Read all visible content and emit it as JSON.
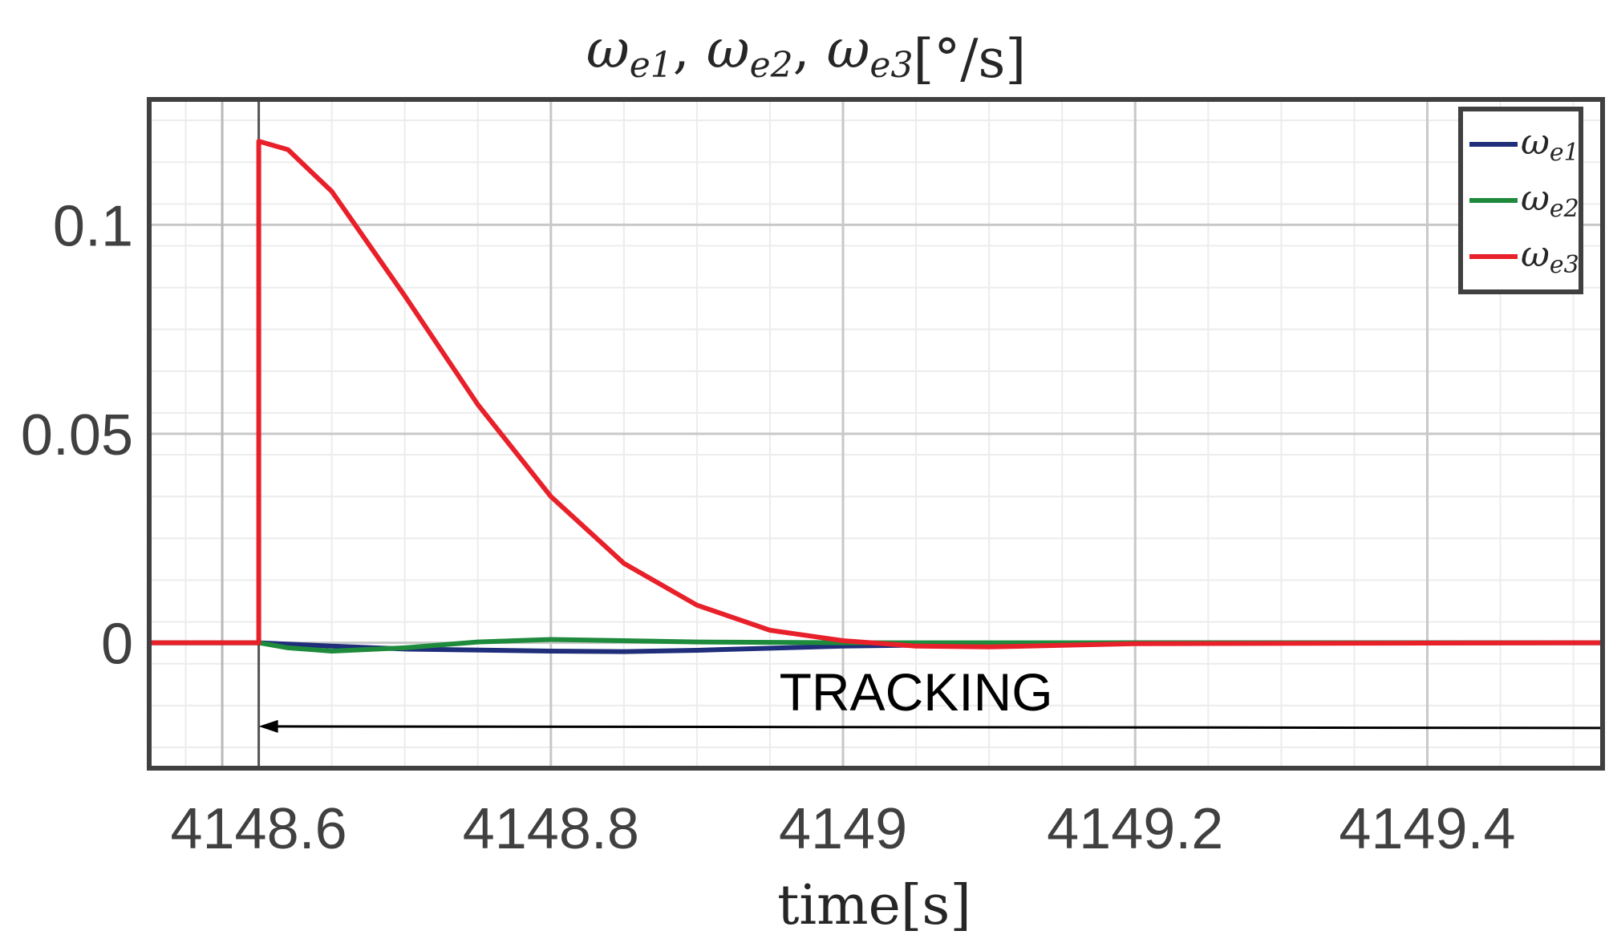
{
  "chart_data": {
    "type": "line",
    "title": {
      "parts": [
        {
          "symbol": "ω",
          "sub": "e1",
          "sep": ", "
        },
        {
          "symbol": "ω",
          "sub": "e2",
          "sep": ", "
        },
        {
          "symbol": "ω",
          "sub": "e3",
          "sep": ""
        }
      ],
      "unit": "[°/s]"
    },
    "xlabel_main": "time",
    "xlabel_unit": "[s]",
    "ylabel": "",
    "xlim": [
      4148.525,
      4149.52
    ],
    "ylim": [
      -0.03,
      0.13
    ],
    "x_ticks": [
      4148.6,
      4148.8,
      4149,
      4149.2,
      4149.4
    ],
    "x_tick_labels": [
      "4148.6",
      "4148.8",
      "4149",
      "4149.2",
      "4149.4"
    ],
    "y_ticks": [
      0,
      0.05,
      0.1
    ],
    "y_tick_labels": [
      "0",
      "0.05",
      "0.1"
    ],
    "grid": true,
    "minor_grid": true,
    "legend_position": "top-right",
    "legend": [
      {
        "symbol": "ω",
        "sub": "e1",
        "color": "#1f2d7a"
      },
      {
        "symbol": "ω",
        "sub": "e2",
        "color": "#1e8a3c"
      },
      {
        "symbol": "ω",
        "sub": "e3",
        "color": "#e8202a"
      }
    ],
    "vertical_lines": [
      4148.575,
      4148.6
    ],
    "series": [
      {
        "name": "ωe1",
        "color": "#1f2d7a",
        "x": [
          4148.525,
          4148.6,
          4148.6,
          4148.65,
          4148.7,
          4148.8,
          4148.85,
          4148.9,
          4149.0,
          4149.1,
          4149.2,
          4149.52
        ],
        "y": [
          0,
          0,
          0,
          -0.0008,
          -0.0015,
          -0.002,
          -0.0021,
          -0.0018,
          -0.0008,
          -0.0003,
          0,
          0
        ]
      },
      {
        "name": "ωe2",
        "color": "#1e8a3c",
        "x": [
          4148.525,
          4148.6,
          4148.6,
          4148.62,
          4148.65,
          4148.7,
          4148.75,
          4148.8,
          4148.85,
          4148.9,
          4149.0,
          4149.1,
          4149.52
        ],
        "y": [
          0,
          0,
          0,
          -0.0012,
          -0.002,
          -0.0012,
          0.0002,
          0.0008,
          0.0005,
          0.0002,
          0,
          0,
          0
        ]
      },
      {
        "name": "ωe3",
        "color": "#e8202a",
        "x": [
          4148.525,
          4148.6,
          4148.6,
          4148.62,
          4148.65,
          4148.7,
          4148.75,
          4148.8,
          4148.85,
          4148.9,
          4148.95,
          4149.0,
          4149.05,
          4149.1,
          4149.15,
          4149.2,
          4149.52
        ],
        "y": [
          0,
          0,
          0.12,
          0.118,
          0.108,
          0.083,
          0.057,
          0.035,
          0.019,
          0.009,
          0.003,
          0.0005,
          -0.0008,
          -0.001,
          -0.0006,
          -0.0002,
          0
        ]
      }
    ],
    "annotation": {
      "text": "TRACKING",
      "text_x": 4149.05,
      "text_y": -0.012,
      "arrow_from": [
        4149.52,
        -0.02
      ],
      "arrow_to": [
        4148.6,
        -0.02
      ]
    }
  }
}
